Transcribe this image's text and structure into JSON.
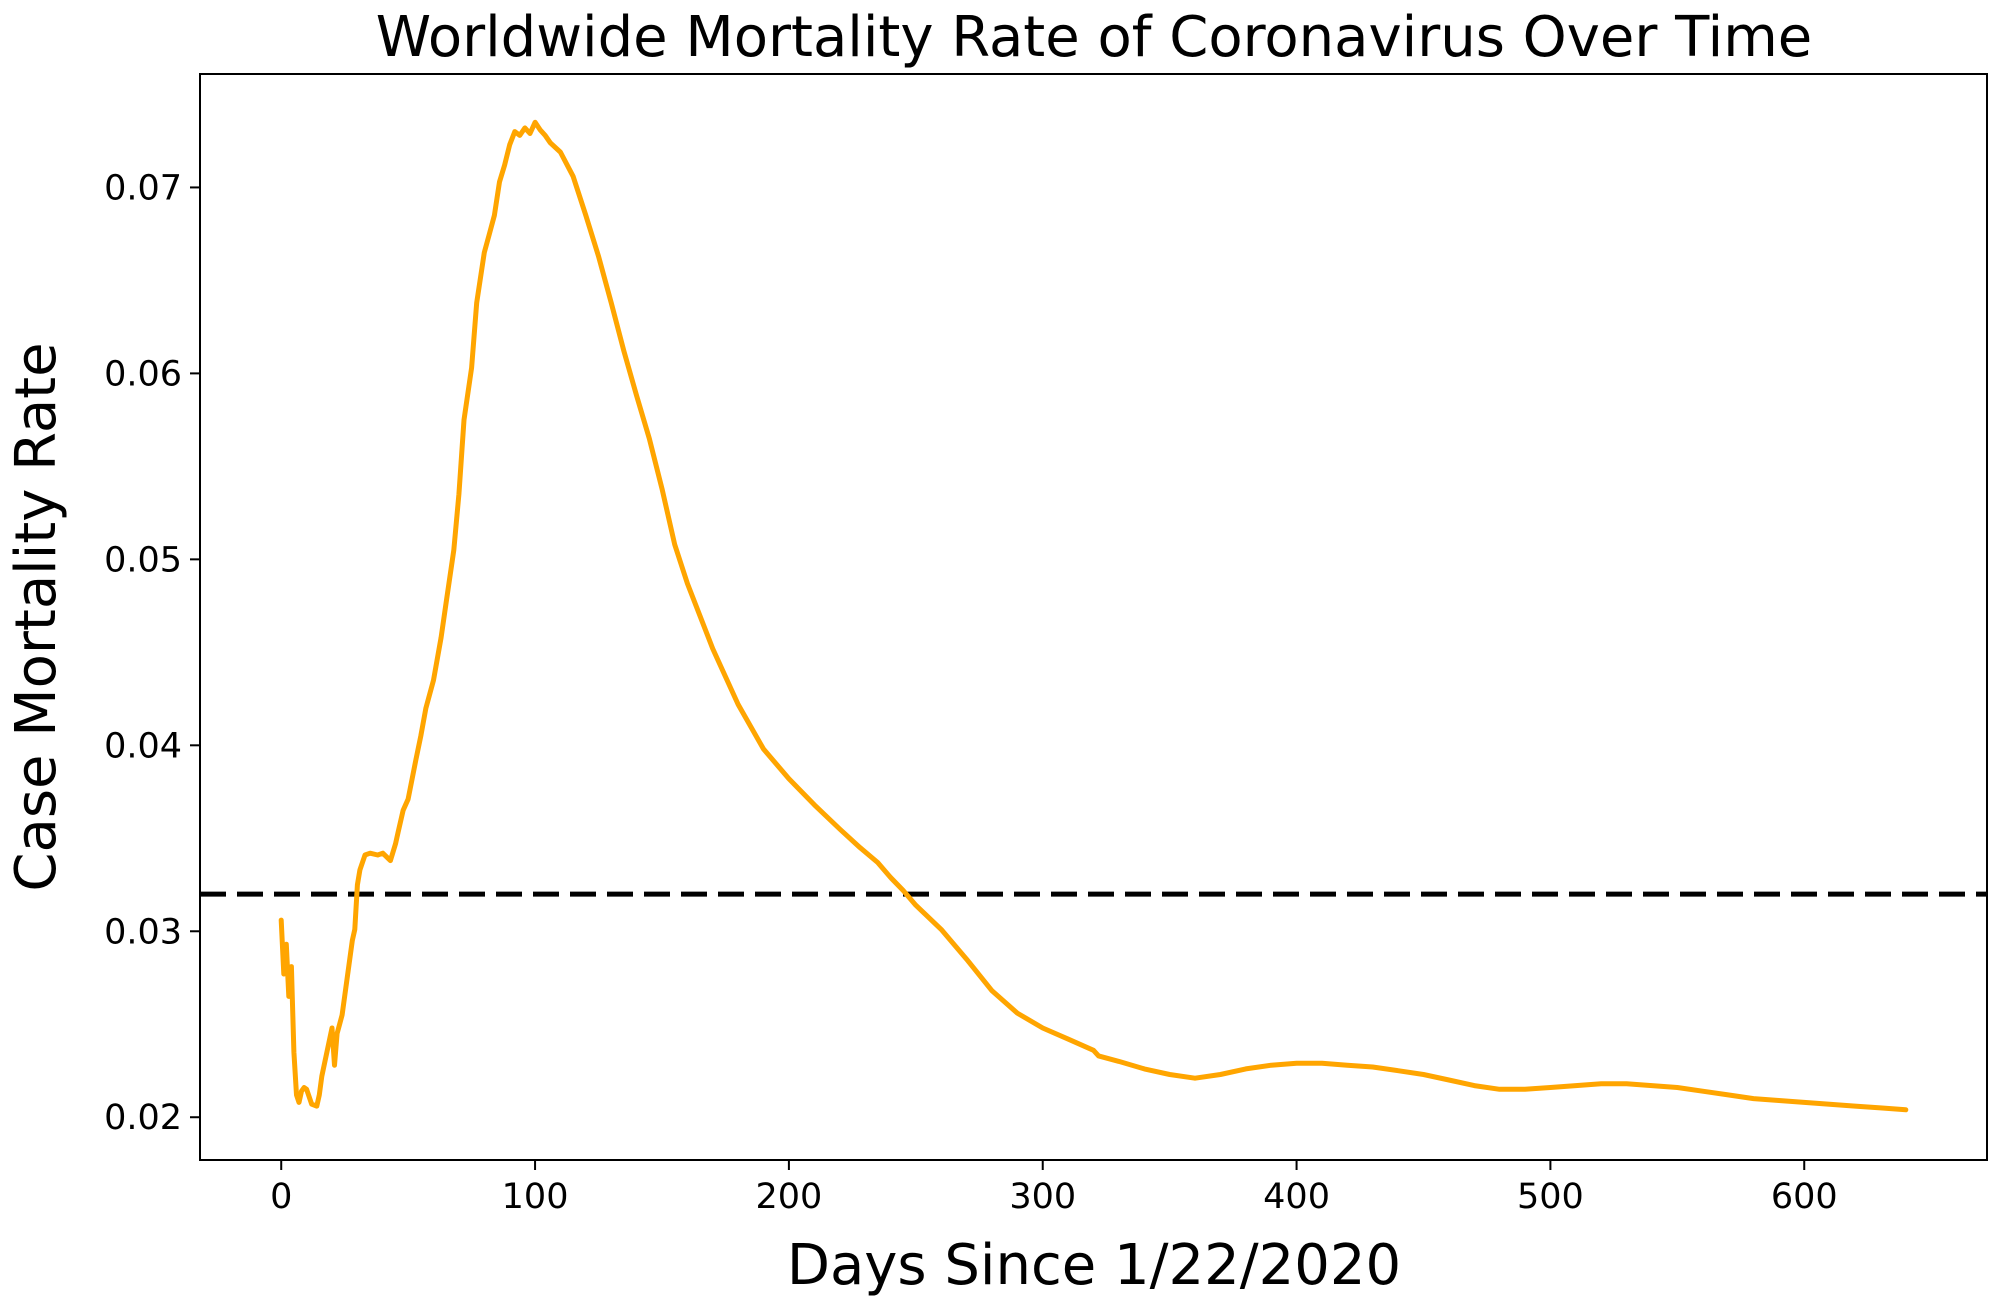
{
  "chart_data": {
    "type": "line",
    "title": "Worldwide Mortality Rate of Coronavirus Over Time",
    "xlabel": "Days Since 1/22/2020",
    "ylabel": "Case Mortality Rate",
    "xlim": [
      -32,
      672
    ],
    "ylim": [
      0.0177,
      0.0761
    ],
    "xticks": [
      0,
      100,
      200,
      300,
      400,
      500,
      600
    ],
    "yticks": [
      0.02,
      0.03,
      0.04,
      0.05,
      0.06,
      0.07
    ],
    "ytick_labels": [
      "0.02",
      "0.03",
      "0.04",
      "0.05",
      "0.06",
      "0.07"
    ],
    "grid": false,
    "reference_line": {
      "y": 0.032,
      "style": "dashed",
      "color": "#000000"
    },
    "series": [
      {
        "color": "#ffa500",
        "x": [
          0,
          1,
          2,
          3,
          4,
          5,
          6,
          7,
          8,
          9,
          10,
          12,
          14,
          15,
          16,
          18,
          20,
          21,
          22,
          23,
          24,
          26,
          28,
          29,
          30,
          31,
          33,
          35,
          38,
          40,
          43,
          45,
          46,
          48,
          50,
          53,
          55,
          57,
          60,
          63,
          65,
          68,
          70,
          72,
          75,
          77,
          80,
          82,
          84,
          86,
          88,
          90,
          92,
          94,
          96,
          98,
          100,
          102,
          104,
          106,
          110,
          115,
          120,
          125,
          130,
          135,
          140,
          145,
          150,
          155,
          160,
          170,
          180,
          190,
          200,
          210,
          220,
          228,
          235,
          240,
          245,
          250,
          260,
          270,
          280,
          290,
          300,
          310,
          320,
          322,
          330,
          340,
          350,
          360,
          370,
          380,
          390,
          400,
          410,
          420,
          430,
          440,
          450,
          460,
          470,
          480,
          490,
          500,
          510,
          520,
          530,
          540,
          550,
          560,
          570,
          580,
          590,
          600,
          610,
          620,
          630,
          640
        ],
        "y": [
          0.0306,
          0.0277,
          0.0293,
          0.0265,
          0.0281,
          0.0235,
          0.0212,
          0.0208,
          0.0214,
          0.0216,
          0.0215,
          0.0207,
          0.0206,
          0.0212,
          0.0222,
          0.0235,
          0.0248,
          0.0228,
          0.0245,
          0.025,
          0.0255,
          0.0275,
          0.0295,
          0.0301,
          0.0325,
          0.0333,
          0.0341,
          0.0342,
          0.0341,
          0.0342,
          0.0338,
          0.0347,
          0.0353,
          0.0365,
          0.0371,
          0.0392,
          0.0405,
          0.042,
          0.0435,
          0.0458,
          0.0477,
          0.0505,
          0.0535,
          0.0575,
          0.0603,
          0.0638,
          0.0665,
          0.0675,
          0.0685,
          0.0703,
          0.0712,
          0.0723,
          0.073,
          0.0728,
          0.0732,
          0.0729,
          0.0735,
          0.0731,
          0.0728,
          0.0724,
          0.0719,
          0.0706,
          0.0685,
          0.0663,
          0.0638,
          0.0612,
          0.0588,
          0.0565,
          0.0538,
          0.0508,
          0.0487,
          0.0452,
          0.0422,
          0.0398,
          0.0382,
          0.0368,
          0.0355,
          0.0345,
          0.0337,
          0.0329,
          0.0322,
          0.0314,
          0.0301,
          0.0285,
          0.0268,
          0.0256,
          0.0248,
          0.0242,
          0.0236,
          0.0233,
          0.023,
          0.0226,
          0.0223,
          0.0221,
          0.0223,
          0.0226,
          0.0228,
          0.0229,
          0.0229,
          0.0228,
          0.0227,
          0.0225,
          0.0223,
          0.022,
          0.0217,
          0.0215,
          0.0215,
          0.0216,
          0.0217,
          0.0218,
          0.0218,
          0.0217,
          0.0216,
          0.0214,
          0.0212,
          0.021,
          0.0209,
          0.0208,
          0.0207,
          0.0206,
          0.0205,
          0.0204
        ]
      }
    ]
  }
}
